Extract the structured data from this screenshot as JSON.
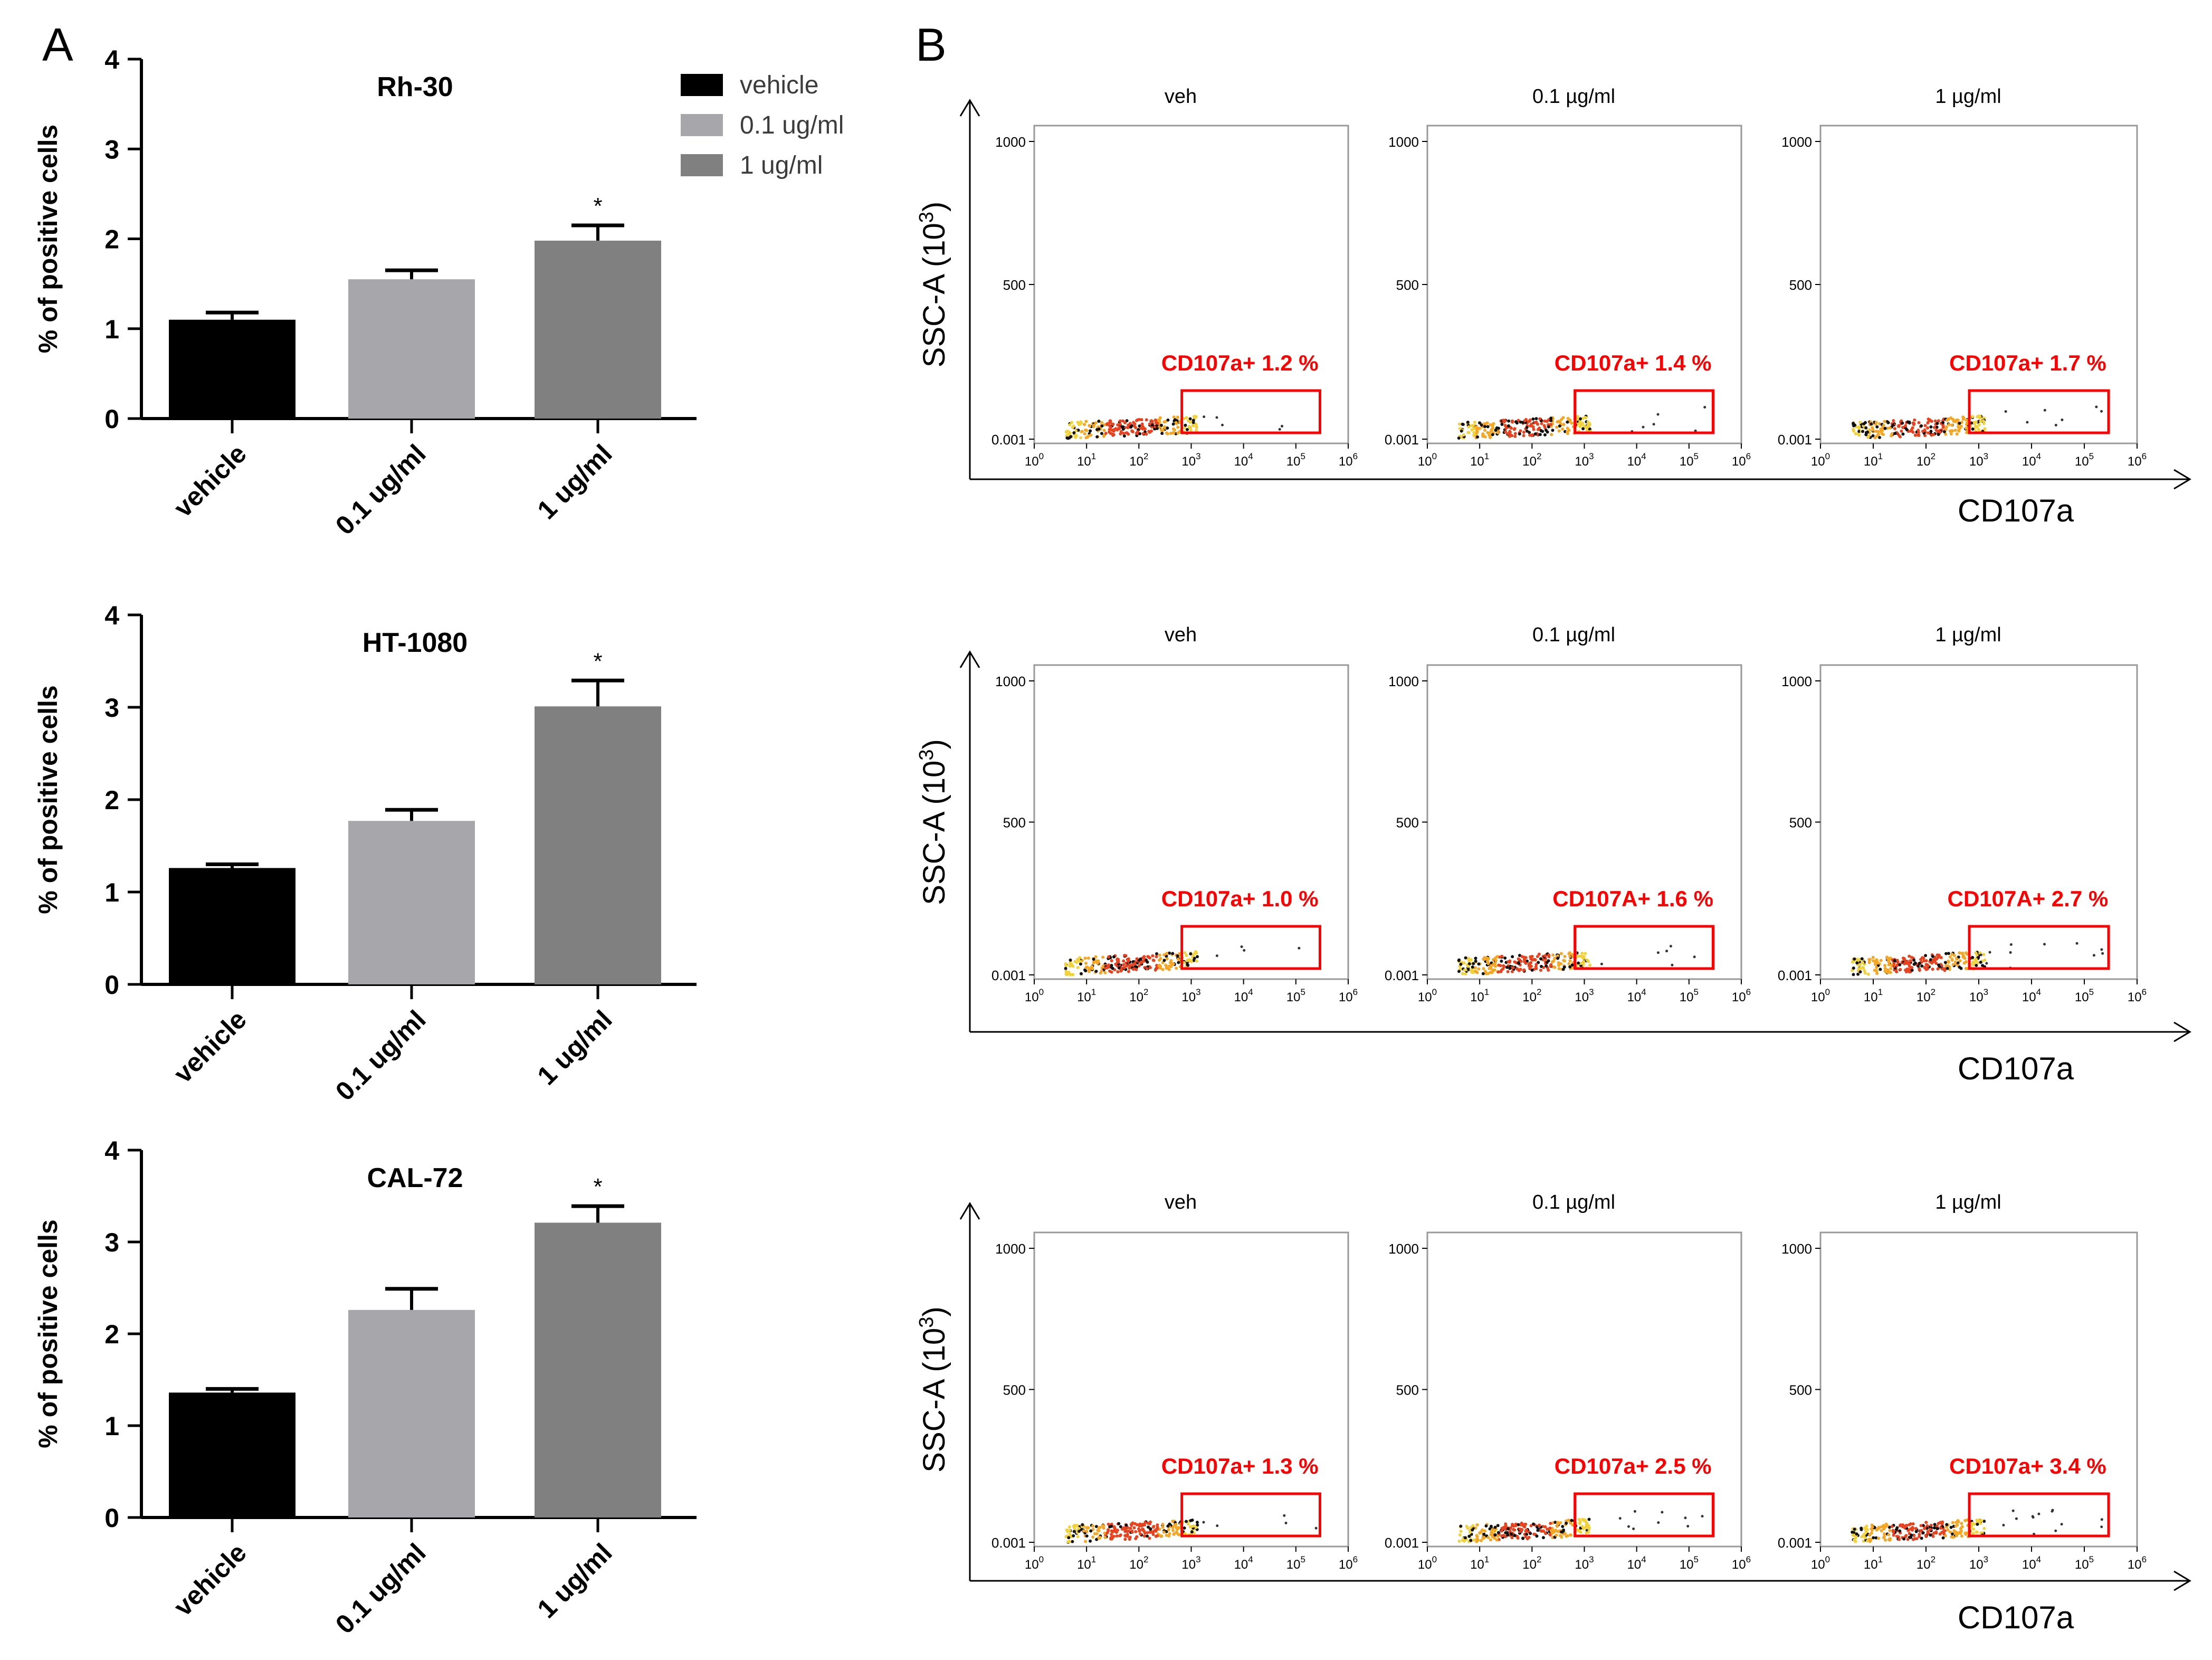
{
  "panel_a_label": "A",
  "panel_b_label": "B",
  "colors": {
    "vehicle": "#000000",
    "low_dose": "#a7a7ab",
    "high_dose": "#808080",
    "gate": "#ff0000",
    "axis": "#000000"
  },
  "legend": {
    "placement": "top-right of first bar chart",
    "entries": [
      "vehicle",
      "0.1 ug/ml",
      "1 ug/ml"
    ]
  },
  "chart_data": [
    {
      "type": "bar",
      "title": "Rh-30",
      "ylabel": "% of positive cells",
      "xlabel": "",
      "ylim": [
        0,
        4
      ],
      "yticks": [
        "0",
        "1",
        "2",
        "3",
        "4"
      ],
      "categories": [
        "vehicle",
        "0.1 ug/ml",
        "1 ug/ml"
      ],
      "values": [
        1.1,
        1.55,
        1.98
      ],
      "errors": [
        0.08,
        0.1,
        0.17
      ],
      "significance": [
        "",
        "",
        "*"
      ]
    },
    {
      "type": "bar",
      "title": "HT-1080",
      "ylabel": "% of positive cells",
      "xlabel": "",
      "ylim": [
        0,
        4
      ],
      "yticks": [
        "0",
        "1",
        "2",
        "3",
        "4"
      ],
      "categories": [
        "vehicle",
        "0.1 ug/ml",
        "1 ug/ml"
      ],
      "values": [
        1.26,
        1.77,
        3.01
      ],
      "errors": [
        0.04,
        0.12,
        0.28
      ],
      "significance": [
        "",
        "",
        "*"
      ]
    },
    {
      "type": "bar",
      "title": "CAL-72",
      "ylabel": "% of positive cells",
      "xlabel": "",
      "ylim": [
        0,
        4
      ],
      "yticks": [
        "0",
        "1",
        "2",
        "3",
        "4"
      ],
      "categories": [
        "vehicle",
        "0.1 ug/ml",
        "1 ug/ml"
      ],
      "values": [
        1.36,
        2.26,
        3.21
      ],
      "errors": [
        0.04,
        0.23,
        0.18
      ],
      "significance": [
        "",
        "",
        "*"
      ]
    },
    {
      "type": "scatter",
      "subtype": "flow cytometry dot plots",
      "ylabel_text": "SSC-A (10",
      "ylabel_sup": "3",
      "ylabel_close": ")",
      "xlabel": "CD107a",
      "yticks": [
        "1000",
        "500",
        "0.001"
      ],
      "xticks": [
        "10",
        "10",
        "10",
        "10",
        "10",
        "10",
        "10"
      ],
      "xtick_exponents": [
        "0",
        "1",
        "2",
        "3",
        "4",
        "5",
        "6"
      ],
      "x_scale": "log",
      "rows": [
        {
          "columns": [
            "veh",
            "0.1 µg/ml",
            "1 µg/ml"
          ],
          "gates": [
            "CD107a+ 1.2 %",
            "CD107a+ 1.4 %",
            "CD107a+ 1.7 %"
          ],
          "gate_percent": [
            1.2,
            1.4,
            1.7
          ]
        },
        {
          "columns": [
            "veh",
            "0.1 µg/ml",
            "1 µg/ml"
          ],
          "gates": [
            "CD107a+ 1.0 %",
            "CD107A+ 1.6 %",
            "CD107A+ 2.7 %"
          ],
          "gate_percent": [
            1.0,
            1.6,
            2.7
          ]
        },
        {
          "columns": [
            "veh",
            "0.1 µg/ml",
            "1 µg/ml"
          ],
          "gates": [
            "CD107a+ 1.3 %",
            "CD107a+ 2.5 %",
            "CD107a+ 3.4 %"
          ],
          "gate_percent": [
            1.3,
            2.5,
            3.4
          ]
        }
      ]
    }
  ]
}
